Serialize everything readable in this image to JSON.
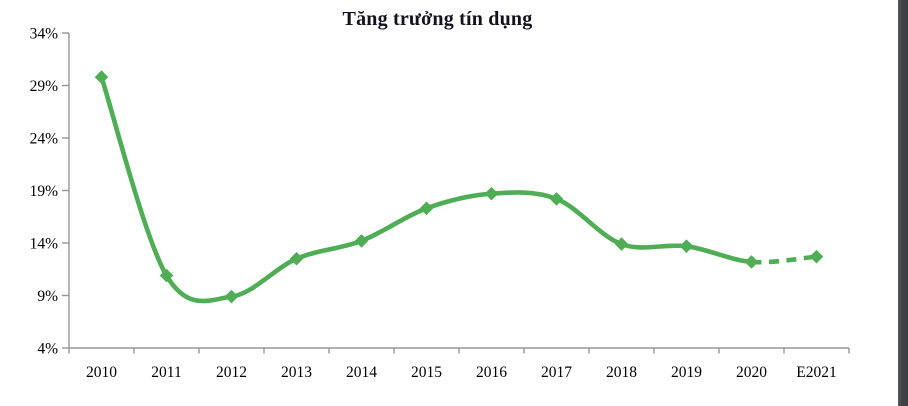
{
  "title": "Tăng trưởng tín dụng",
  "colors": {
    "line": "#4fae55",
    "axis": "#969696",
    "label": "#000000",
    "title": "#13131f",
    "edge_strip": "#404447"
  },
  "chart_data": {
    "type": "line",
    "title": "Tăng trưởng tín dụng",
    "categories": [
      "2010",
      "2011",
      "2012",
      "2013",
      "2014",
      "2015",
      "2016",
      "2017",
      "2018",
      "2019",
      "2020",
      "E2021"
    ],
    "series": [
      {
        "name": "Tăng trưởng tín dụng",
        "values": [
          29.8,
          10.9,
          8.9,
          12.5,
          14.2,
          17.3,
          18.7,
          18.2,
          13.9,
          13.7,
          12.2,
          12.7
        ]
      }
    ],
    "y_ticks": [
      "34%",
      "29%",
      "24%",
      "19%",
      "14%",
      "9%",
      "4%"
    ],
    "ylim": [
      4,
      34
    ],
    "y_tick_step": 5,
    "unit": "%",
    "smooth": true,
    "marker": "diamond",
    "dashed_from_index": 10,
    "dashed_meaning": "forecast segment 2020 to E2021",
    "legend": "none",
    "grid": false
  }
}
